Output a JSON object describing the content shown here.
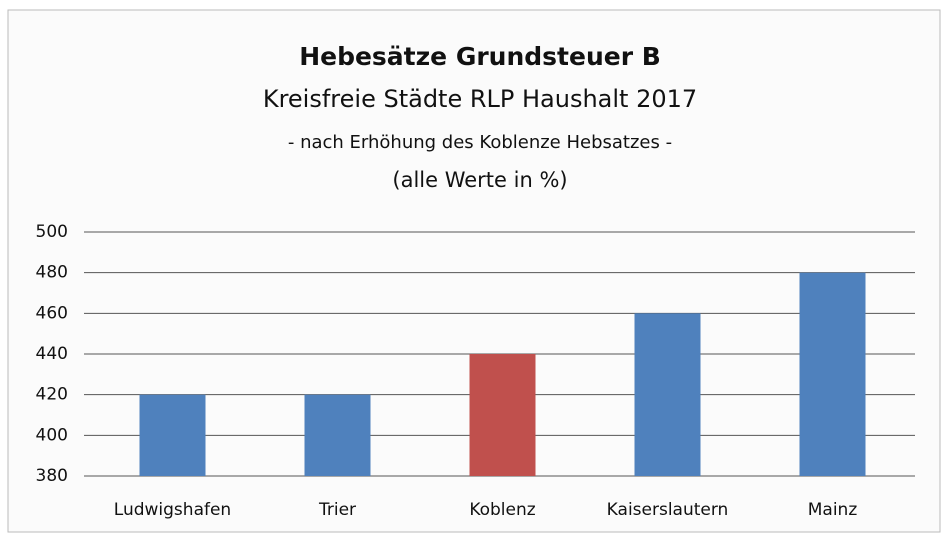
{
  "chart_data": {
    "type": "bar",
    "title": "Hebesätze Grundsteuer B",
    "subtitle": [
      "Kreisfreie Städte RLP Haushalt 2017",
      "- nach Erhöhung des Koblenze Hebsatzes -",
      "(alle Werte in %)"
    ],
    "categories": [
      "Ludwigshafen",
      "Trier",
      "Koblenz",
      "Kaiserslautern",
      "Mainz"
    ],
    "values": [
      420,
      420,
      440,
      460,
      480
    ],
    "colors": [
      "#4f81bd",
      "#4f81bd",
      "#c0504d",
      "#4f81bd",
      "#4f81bd"
    ],
    "ylim": [
      380,
      500
    ],
    "yticks": [
      380,
      400,
      420,
      440,
      460,
      480,
      500
    ],
    "grid": true
  }
}
